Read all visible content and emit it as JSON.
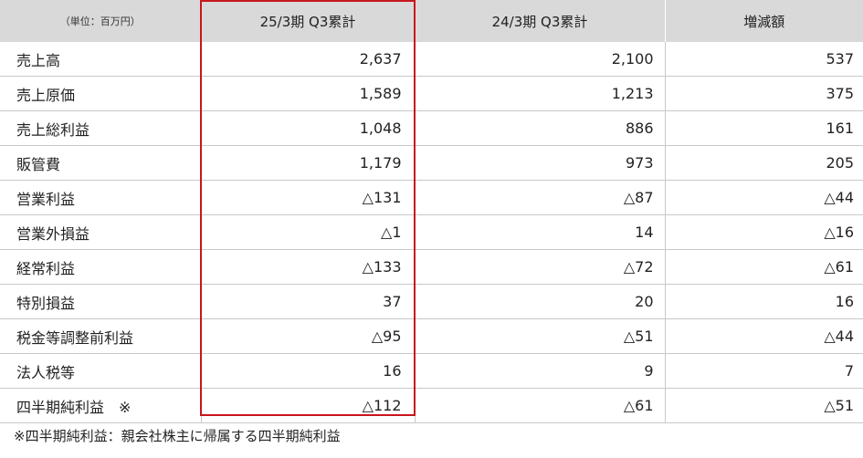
{
  "table": {
    "unit_label": "（単位：百万円）",
    "col_current": "25/3期 Q3累計",
    "col_prior": "24/3期 Q3累計",
    "col_change": "増減額",
    "rows": [
      {
        "label": "売上高",
        "current": "2,637",
        "prior": "2,100",
        "change": "537"
      },
      {
        "label": "売上原価",
        "current": "1,589",
        "prior": "1,213",
        "change": "375"
      },
      {
        "label": "売上総利益",
        "current": "1,048",
        "prior": "886",
        "change": "161"
      },
      {
        "label": "販管費",
        "current": "1,179",
        "prior": "973",
        "change": "205"
      },
      {
        "label": "営業利益",
        "current": "△131",
        "prior": "△87",
        "change": "△44"
      },
      {
        "label": "営業外損益",
        "current": "△1",
        "prior": "14",
        "change": "△16"
      },
      {
        "label": "経常利益",
        "current": "△133",
        "prior": "△72",
        "change": "△61"
      },
      {
        "label": "特別損益",
        "current": "37",
        "prior": "20",
        "change": "16"
      },
      {
        "label": "税金等調整前利益",
        "current": "△95",
        "prior": "△51",
        "change": "△44"
      },
      {
        "label": "法人税等",
        "current": "16",
        "prior": "9",
        "change": "7"
      },
      {
        "label": "四半期純利益　※",
        "current": "△112",
        "prior": "△61",
        "change": "△51"
      }
    ]
  },
  "footnote": "※四半期純利益：親会社株主に帰属する四半期純利益",
  "colors": {
    "header_bg": "#d9d9d9",
    "highlight_border": "#c8161d",
    "row_border": "#c8c8c8"
  }
}
